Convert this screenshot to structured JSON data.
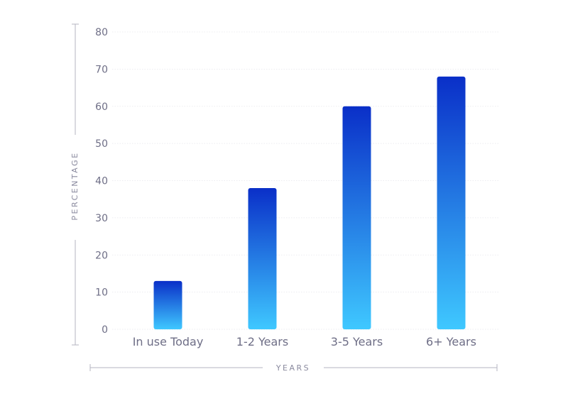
{
  "chart_data": {
    "type": "bar",
    "categories": [
      "In use Today",
      "1-2 Years",
      "3-5 Years",
      "6+ Years"
    ],
    "values": [
      13,
      38,
      60,
      68
    ],
    "xlabel": "YEARS",
    "ylabel": "PERCENTAGE",
    "ylim": [
      0,
      80
    ],
    "yticks": [
      0,
      10,
      20,
      30,
      40,
      50,
      60,
      70,
      80
    ],
    "grid": true,
    "colors": {
      "bar_top": "#0a2fc8",
      "bar_bottom": "#3fc8ff",
      "text": "#6e6e86",
      "grid": "#e6e6ec",
      "bracket": "#b6b6c2"
    }
  }
}
